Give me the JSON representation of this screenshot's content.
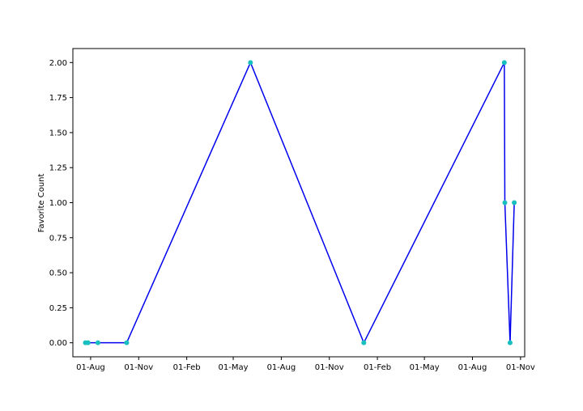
{
  "chart_data": {
    "type": "line",
    "title": "",
    "xlabel": "",
    "ylabel": "Favorite Count",
    "x_axis_type": "date",
    "xlim": [
      "2018-06-28",
      "2020-11-09"
    ],
    "ylim": [
      -0.1,
      2.1
    ],
    "y_ticks": [
      0.0,
      0.25,
      0.5,
      0.75,
      1.0,
      1.25,
      1.5,
      1.75,
      2.0
    ],
    "y_tick_labels": [
      "0.00",
      "0.25",
      "0.50",
      "0.75",
      "1.00",
      "1.25",
      "1.50",
      "1.75",
      "2.00"
    ],
    "x_ticks": [
      "2018-08-01",
      "2018-11-01",
      "2019-02-01",
      "2019-05-01",
      "2019-08-01",
      "2019-11-01",
      "2020-02-01",
      "2020-05-01",
      "2020-08-01",
      "2020-11-01"
    ],
    "x_tick_labels": [
      "01-Aug",
      "01-Nov",
      "01-Feb",
      "01-May",
      "01-Aug",
      "01-Nov",
      "01-Feb",
      "01-May",
      "01-Aug",
      "01-Nov"
    ],
    "grid": false,
    "legend": "none",
    "series": [
      {
        "line_color": "#0000ee",
        "marker_color": "#17bfbf",
        "x": [
          "2018-07-22",
          "2018-07-27",
          "2018-08-15",
          "2018-10-09",
          "2019-06-03",
          "2020-01-06",
          "2020-10-01",
          "2020-10-02",
          "2020-10-12",
          "2020-10-20"
        ],
        "y": [
          0,
          0,
          0,
          0,
          2,
          0,
          2,
          1,
          0,
          1
        ]
      }
    ]
  }
}
